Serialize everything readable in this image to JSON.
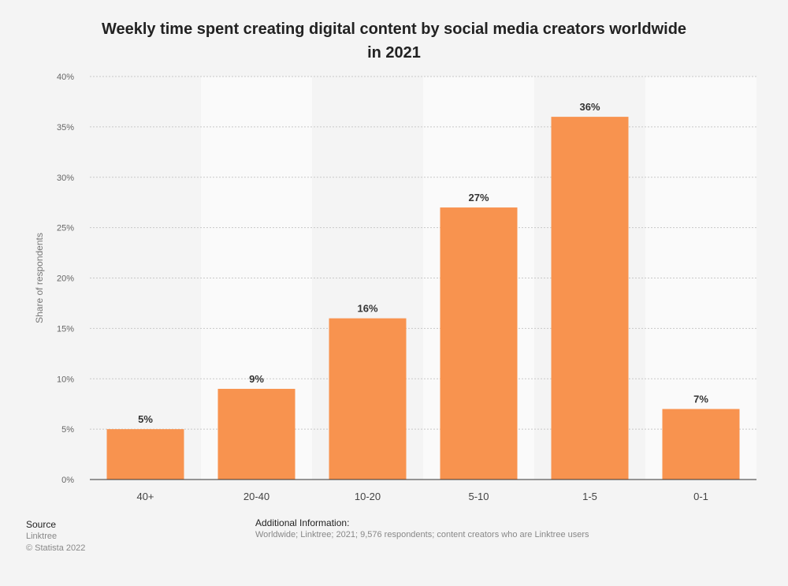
{
  "chart_data": {
    "type": "bar",
    "title": "Weekly time spent creating digital content by social media creators worldwide in 2021",
    "title_line1": "Weekly time spent creating digital content by social media creators worldwide",
    "title_line2": "in 2021",
    "categories": [
      "40+",
      "20-40",
      "10-20",
      "5-10",
      "1-5",
      "0-1"
    ],
    "values": [
      5,
      9,
      16,
      27,
      36,
      7
    ],
    "value_labels": [
      "5%",
      "9%",
      "16%",
      "27%",
      "36%",
      "7%"
    ],
    "xlabel": "",
    "ylabel": "Share of respondents",
    "ylim": [
      0,
      40
    ],
    "yticks": [
      0,
      5,
      10,
      15,
      20,
      25,
      30,
      35,
      40
    ],
    "ytick_labels": [
      "0%",
      "5%",
      "10%",
      "15%",
      "20%",
      "25%",
      "30%",
      "35%",
      "40%"
    ],
    "grid": true,
    "bar_color": "#f8934f"
  },
  "footer": {
    "source_heading": "Source",
    "source_name": "Linktree",
    "copyright": "© Statista 2022",
    "info_heading": "Additional Information:",
    "info_text": "Worldwide; Linktree; 2021; 9,576 respondents; content creators who are Linktree users"
  }
}
